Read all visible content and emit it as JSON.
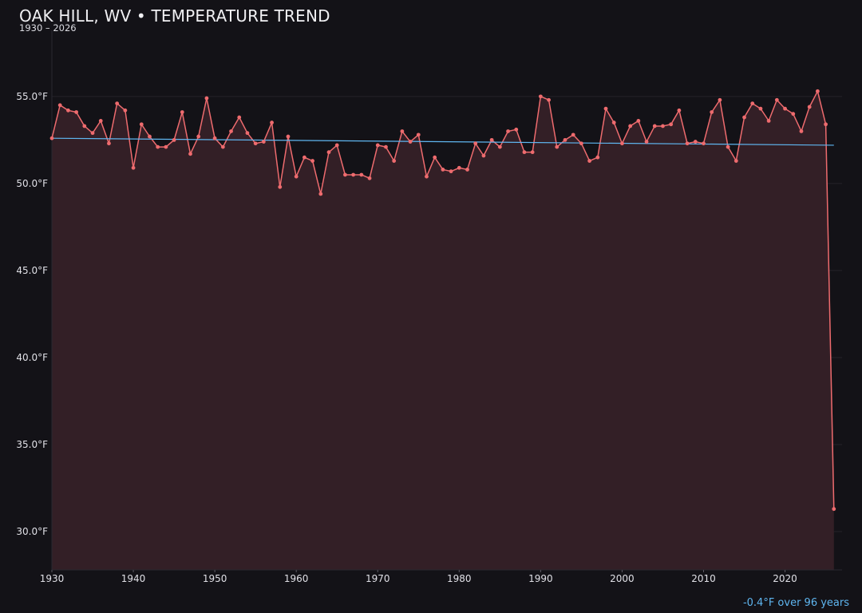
{
  "header": {
    "title": "OAK HILL, WV • TEMPERATURE TREND",
    "subtitle": "1930 – 2026"
  },
  "footer": {
    "trend_note": "-0.4°F over 96 years",
    "trend_note_color": "#5fb6f0"
  },
  "colors": {
    "background": "#131217",
    "series_line": "#ee6b6e",
    "area_fill": "#331f26",
    "trend_line": "#5fb6f0",
    "grid": "#26222a",
    "tick_label": "#e0e0e6"
  },
  "chart_data": {
    "type": "line",
    "title": "OAK HILL, WV • TEMPERATURE TREND",
    "subtitle": "1930 – 2026",
    "xlabel": "",
    "ylabel": "",
    "xlim": [
      1930,
      2027
    ],
    "ylim": [
      27.8,
      58.8
    ],
    "x_ticks": [
      1930,
      1940,
      1950,
      1960,
      1970,
      1980,
      1990,
      2000,
      2010,
      2020
    ],
    "y_ticks": [
      30.0,
      35.0,
      40.0,
      45.0,
      50.0,
      55.0
    ],
    "y_tick_labels": [
      "30.0°F",
      "35.0°F",
      "40.0°F",
      "45.0°F",
      "50.0°F",
      "55.0°F"
    ],
    "grid": true,
    "area_fill": true,
    "x": [
      1930,
      1931,
      1932,
      1933,
      1934,
      1935,
      1936,
      1937,
      1938,
      1939,
      1940,
      1941,
      1942,
      1943,
      1944,
      1945,
      1946,
      1947,
      1948,
      1949,
      1950,
      1951,
      1952,
      1953,
      1954,
      1955,
      1956,
      1957,
      1958,
      1959,
      1960,
      1961,
      1962,
      1963,
      1964,
      1965,
      1966,
      1967,
      1968,
      1969,
      1970,
      1971,
      1972,
      1973,
      1974,
      1975,
      1976,
      1977,
      1978,
      1979,
      1980,
      1981,
      1982,
      1983,
      1984,
      1985,
      1986,
      1987,
      1988,
      1989,
      1990,
      1991,
      1992,
      1993,
      1994,
      1995,
      1996,
      1997,
      1998,
      1999,
      2000,
      2001,
      2002,
      2003,
      2004,
      2005,
      2006,
      2007,
      2008,
      2009,
      2010,
      2011,
      2012,
      2013,
      2014,
      2015,
      2016,
      2017,
      2018,
      2019,
      2020,
      2021,
      2022,
      2023,
      2024,
      2025,
      2026
    ],
    "series": [
      {
        "values": [
          52.6,
          54.5,
          54.2,
          54.1,
          53.3,
          52.9,
          53.6,
          52.3,
          54.6,
          54.2,
          50.9,
          53.4,
          52.7,
          52.1,
          52.1,
          52.5,
          54.1,
          51.7,
          52.7,
          54.9,
          52.6,
          52.1,
          53.0,
          53.8,
          52.9,
          52.3,
          52.4,
          53.5,
          49.8,
          52.7,
          50.4,
          51.5,
          51.3,
          49.4,
          51.8,
          52.2,
          50.5,
          50.5,
          50.5,
          50.3,
          52.2,
          52.1,
          51.3,
          53.0,
          52.4,
          52.8,
          50.4,
          51.5,
          50.8,
          50.7,
          50.9,
          50.8,
          52.3,
          51.6,
          52.5,
          52.1,
          53.0,
          53.1,
          51.8,
          51.8,
          55.0,
          54.8,
          52.1,
          52.5,
          52.8,
          52.3,
          51.3,
          51.5,
          54.3,
          53.5,
          52.3,
          53.3,
          53.6,
          52.4,
          53.3,
          53.3,
          53.4,
          54.2,
          52.3,
          52.4,
          52.3,
          54.1,
          54.8,
          52.1,
          51.3,
          53.8,
          54.6,
          54.3,
          53.6,
          54.8,
          54.3,
          54.0,
          53.0,
          54.4,
          55.3,
          53.4,
          31.3
        ]
      }
    ],
    "trend": {
      "x": [
        1930,
        2026
      ],
      "y": [
        52.6,
        52.2
      ]
    }
  }
}
